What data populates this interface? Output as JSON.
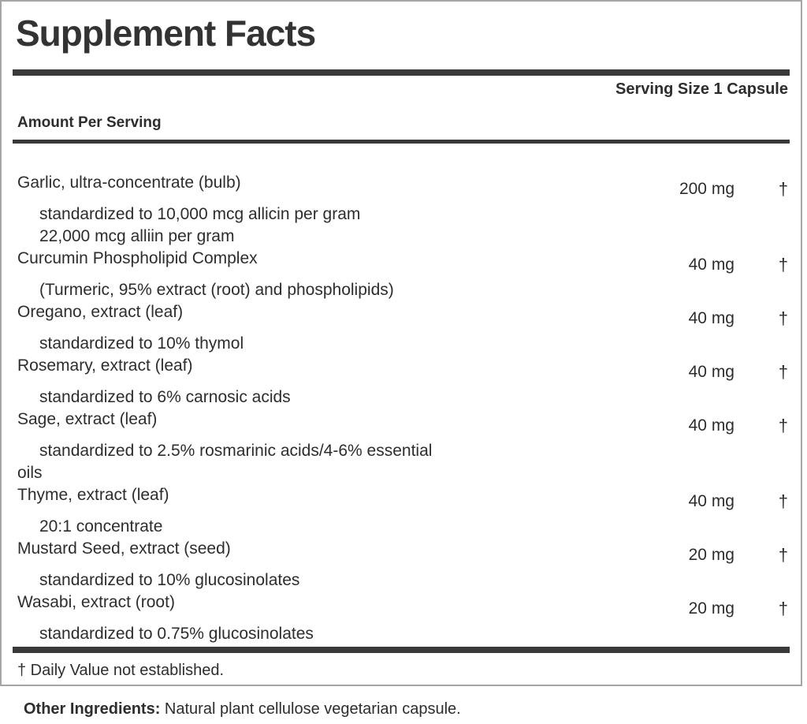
{
  "panel": {
    "title": "Supplement Facts",
    "serving_size": "Serving Size 1 Capsule",
    "column_header": "Amount Per Serving",
    "rows": [
      {
        "name": "Garlic, ultra-concentrate (bulb)",
        "amount": "200 mg",
        "dv": "†",
        "subs": [
          "standardized to 10,000 mcg allicin per gram",
          "22,000 mcg alliin per gram"
        ]
      },
      {
        "name": "Curcumin Phospholipid Complex",
        "amount": "40 mg",
        "dv": "†",
        "subs": [
          "(Turmeric, 95% extract (root) and phospholipids)"
        ]
      },
      {
        "name": "Oregano, extract (leaf)",
        "amount": "40 mg",
        "dv": "†",
        "subs": [
          "standardized to 10% thymol"
        ]
      },
      {
        "name": "Rosemary, extract (leaf)",
        "amount": "40 mg",
        "dv": "†",
        "subs": [
          "standardized to 6% carnosic acids"
        ]
      },
      {
        "name": "Sage, extract (leaf)",
        "amount": "40 mg",
        "dv": "†",
        "subs": [
          "standardized to 2.5% rosmarinic acids/4-6% essential",
          "oils"
        ]
      },
      {
        "name": "Thyme, extract (leaf)",
        "amount": "40 mg",
        "dv": "†",
        "subs": [
          "20:1 concentrate"
        ]
      },
      {
        "name": "Mustard Seed, extract (seed)",
        "amount": "20 mg",
        "dv": "†",
        "subs": [
          "standardized to 10% glucosinolates"
        ]
      },
      {
        "name": "Wasabi, extract (root)",
        "amount": "20 mg",
        "dv": "†",
        "subs": [
          "standardized to 0.75% glucosinolates"
        ]
      }
    ],
    "footnote": "† Daily Value not established.",
    "other_ingredients_label": "Other Ingredients:",
    "other_ingredients_text": " Natural plant cellulose vegetarian capsule."
  },
  "colors": {
    "text": "#2d2d2d",
    "divider": "#3a3a3a",
    "panel_border": "#a6a6a6",
    "background": "#ffffff"
  }
}
